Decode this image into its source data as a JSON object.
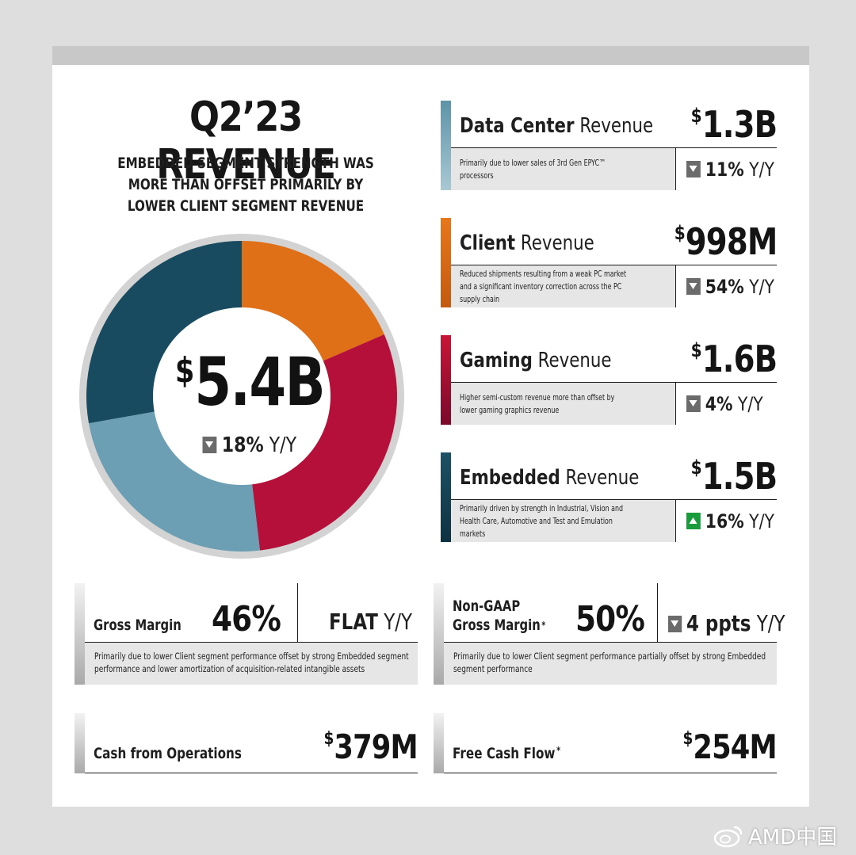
{
  "headline": {
    "title": "Q2’23 REVENUE",
    "subtitle": "EMBEDDED SEGMENT STRENGTH WAS MORE THAN OFFSET PRIMARILY BY LOWER CLIENT SEGMENT REVENUE"
  },
  "total": {
    "currency": "$",
    "amount": "5.4B",
    "change": "18%",
    "change_unit": "Y/Y",
    "direction": "down"
  },
  "chart_data": {
    "type": "pie",
    "style": "donut",
    "title": "Q2’23 REVENUE",
    "center_label": "$5.4B",
    "unit": "billion USD",
    "categories": [
      "Client",
      "Gaming",
      "Data Center",
      "Embedded"
    ],
    "values": [
      0.998,
      1.6,
      1.3,
      1.5
    ],
    "colors": [
      "#e07018",
      "#b5103a",
      "#6c9fb3",
      "#194b60"
    ]
  },
  "segments": [
    {
      "name_bold": "Data Center",
      "name_rest": " Revenue",
      "currency": "$",
      "value": "1.3B",
      "desc": "Primarily due to lower sales of 3rd Gen EPYC™ processors",
      "change": "11%",
      "change_unit": "Y/Y",
      "direction": "down",
      "color_top": "#5d93a8",
      "color_bottom": "#a9c8d4"
    },
    {
      "name_bold": "Client",
      "name_rest": " Revenue",
      "currency": "$",
      "value": "998M",
      "desc": "Reduced shipments resulting from a weak PC market and a significant inventory correction across the PC supply chain",
      "change": "54%",
      "change_unit": "Y/Y",
      "direction": "down",
      "color_top": "#e8771c",
      "color_bottom": "#c35a10"
    },
    {
      "name_bold": "Gaming",
      "name_rest": " Revenue",
      "currency": "$",
      "value": "1.6B",
      "desc": "Higher semi-custom revenue more than offset by lower gaming graphics revenue",
      "change": "4%",
      "change_unit": "Y/Y",
      "direction": "down",
      "color_top": "#c81537",
      "color_bottom": "#7a0a2c"
    },
    {
      "name_bold": "Embedded",
      "name_rest": " Revenue",
      "currency": "$",
      "value": "1.5B",
      "desc": "Primarily driven by strength in Industrial, Vision and Health Care, Automotive and Test and Emulation markets",
      "change": "16%",
      "change_unit": "Y/Y",
      "direction": "up",
      "color_top": "#1d5166",
      "color_bottom": "#0f3242"
    }
  ],
  "gross_margin": {
    "label": "Gross Margin",
    "value": "46%",
    "change": "FLAT",
    "change_unit": "Y/Y",
    "desc": "Primarily due to lower Client segment performance offset by strong Embedded segment performance and lower amortization of acquisition-related intangible assets"
  },
  "nongaap_margin": {
    "label_line1": "Non-GAAP",
    "label_line2": "Gross Margin",
    "asterisk": "*",
    "value": "50%",
    "change": "4 ppts",
    "change_unit": "Y/Y",
    "direction": "down",
    "desc": "Primarily due to lower Client segment performance partially offset by strong Embedded segment performance"
  },
  "cash_ops": {
    "label": "Cash from Operations",
    "currency": "$",
    "value": "379M"
  },
  "free_cash": {
    "label": "Free Cash Flow",
    "asterisk": "*",
    "currency": "$",
    "value": "254M"
  },
  "watermark": {
    "text": "AMD中国"
  }
}
